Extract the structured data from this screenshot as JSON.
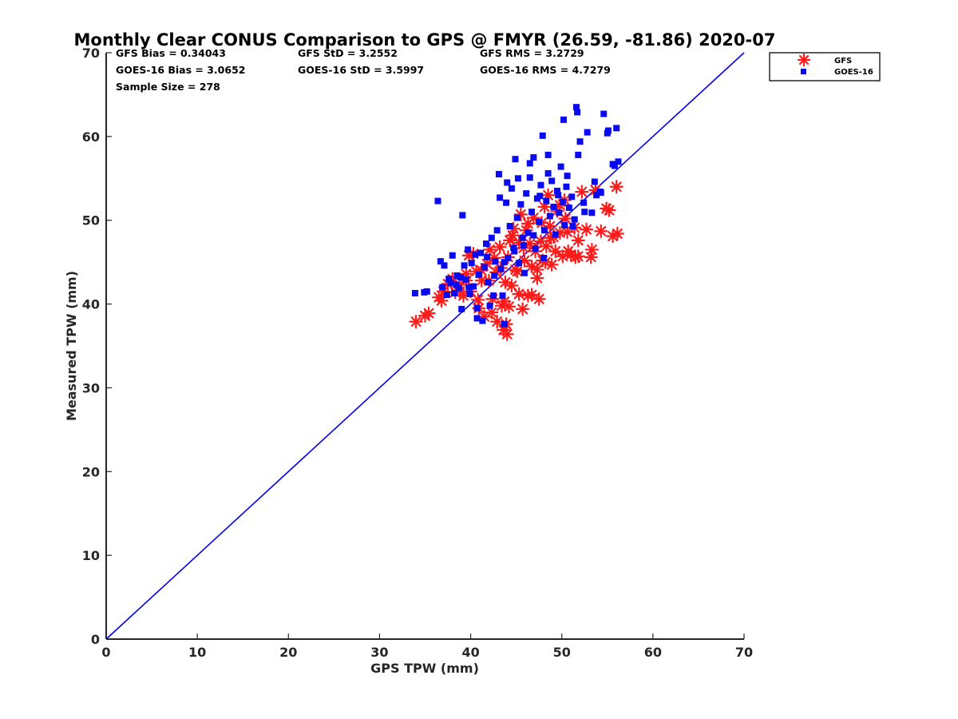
{
  "chart_data": {
    "type": "scatter",
    "title": "Monthly Clear CONUS Comparison to GPS @ FMYR (26.59, -81.86) 2020-07",
    "xlabel": "GPS TPW (mm)",
    "ylabel": "Measured TPW (mm)",
    "xlim": [
      0,
      70
    ],
    "ylim": [
      0,
      70
    ],
    "xticks": [
      "0",
      "10",
      "20",
      "30",
      "40",
      "50",
      "60",
      "70"
    ],
    "yticks": [
      "0",
      "10",
      "20",
      "30",
      "40",
      "50",
      "60",
      "70"
    ],
    "grid": false,
    "legend_position": "outside-top-right",
    "stats": [
      "GFS Bias = 0.34043",
      "GFS StD = 3.2552",
      "GFS RMS = 3.2729",
      "GOES-16 Bias = 3.0652",
      "GOES-16 StD = 3.5997",
      "GOES-16 RMS = 4.7279",
      "Sample Size = 278"
    ],
    "reference_line": {
      "x": [
        0,
        70
      ],
      "y": [
        0,
        70
      ],
      "color": "#0000ee"
    },
    "series": [
      {
        "name": "GFS",
        "marker": "asterisk",
        "color": "#ff1a1a",
        "x": [
          34.0,
          35.0,
          35.4,
          36.5,
          37.0,
          37.5,
          38.0,
          38.3,
          38.8,
          39.2,
          39.5,
          39.8,
          40.0,
          40.3,
          40.6,
          40.9,
          41.2,
          41.5,
          41.8,
          42.1,
          42.4,
          42.6,
          42.9,
          43.2,
          43.4,
          43.6,
          43.8,
          44.0,
          44.1,
          44.3,
          44.5,
          44.7,
          44.9,
          45.1,
          45.3,
          45.5,
          45.7,
          45.9,
          46.1,
          46.3,
          46.5,
          46.7,
          46.9,
          47.1,
          47.3,
          47.5,
          47.7,
          47.9,
          48.1,
          48.3,
          48.5,
          48.7,
          48.9,
          49.1,
          49.3,
          49.5,
          49.8,
          50.1,
          50.4,
          50.7,
          51.0,
          51.4,
          51.8,
          52.2,
          52.7,
          53.2,
          53.7,
          54.3,
          54.9,
          55.6,
          56.1,
          38.8,
          40.8,
          42.3,
          42.8,
          43.3,
          43.9,
          44.2,
          45.3,
          46.3,
          47.3,
          48.8,
          50.3,
          51.8,
          53.3,
          55.2,
          56.0,
          41.2,
          43.7,
          45.8,
          47.8,
          49.8,
          51.5,
          36.8,
          39.5,
          42.0,
          44.6,
          46.7,
          48.2,
          50.6
        ],
        "y": [
          37.9,
          38.6,
          38.9,
          40.8,
          41.5,
          42.4,
          43.0,
          41.4,
          42.3,
          41.0,
          42.8,
          45.8,
          41.5,
          46.0,
          43.9,
          39.5,
          42.8,
          38.5,
          44.8,
          46.5,
          40.6,
          45.5,
          37.9,
          46.8,
          39.8,
          36.9,
          42.6,
          36.4,
          45.6,
          47.6,
          42.2,
          49.0,
          44.1,
          43.9,
          47.3,
          50.7,
          39.4,
          45.2,
          48.8,
          41.0,
          47.2,
          44.5,
          50.3,
          46.3,
          43.1,
          40.6,
          47.5,
          45.2,
          51.6,
          46.9,
          53.0,
          49.3,
          44.7,
          48.0,
          46.3,
          51.1,
          48.5,
          45.7,
          50.2,
          46.3,
          45.9,
          49.1,
          47.6,
          53.4,
          48.9,
          45.6,
          53.6,
          48.7,
          51.4,
          48.1,
          48.4,
          41.5,
          40.5,
          39.0,
          43.8,
          44.3,
          37.6,
          39.7,
          41.2,
          49.6,
          44.1,
          47.9,
          52.4,
          45.7,
          46.5,
          51.2,
          54.0,
          44.0,
          40.3,
          46.7,
          49.7,
          51.8,
          45.6,
          40.4,
          43.6,
          42.8,
          48.2,
          41.1,
          45.0,
          48.6
        ]
      },
      {
        "name": "GOES-16",
        "marker": "square",
        "color": "#0a0af0",
        "x": [
          33.9,
          34.9,
          35.2,
          36.4,
          36.7,
          36.9,
          37.1,
          37.4,
          37.6,
          37.8,
          38.0,
          38.2,
          38.5,
          38.7,
          38.9,
          39.1,
          39.3,
          39.5,
          39.7,
          39.9,
          40.1,
          40.3,
          40.5,
          40.7,
          40.9,
          41.1,
          41.3,
          41.5,
          41.7,
          41.9,
          42.1,
          42.3,
          42.5,
          42.7,
          42.9,
          43.1,
          43.3,
          43.5,
          43.7,
          43.9,
          44.1,
          44.3,
          44.5,
          44.7,
          44.9,
          45.1,
          45.3,
          45.5,
          45.7,
          45.9,
          46.1,
          46.3,
          46.5,
          46.7,
          46.9,
          47.1,
          47.3,
          47.5,
          47.7,
          47.9,
          48.1,
          48.3,
          48.5,
          48.7,
          48.9,
          49.1,
          49.3,
          49.5,
          49.7,
          49.9,
          50.1,
          50.3,
          50.5,
          50.8,
          51.1,
          51.4,
          51.7,
          52.0,
          52.4,
          52.8,
          53.3,
          53.8,
          54.2,
          54.6,
          55.1,
          55.6,
          56.0,
          56.2,
          51.6,
          51.8,
          54.3,
          55.0,
          55.8,
          50.2,
          47.6,
          45.2,
          46.5,
          44.0,
          43.2,
          48.5,
          49.6,
          50.6,
          52.5,
          53.6,
          51.2,
          48.0,
          46.9,
          45.8,
          44.8,
          43.7,
          42.6,
          41.8,
          40.7,
          39.8,
          39.0,
          38.4
        ],
        "y": [
          41.3,
          41.4,
          41.5,
          52.3,
          45.1,
          42.0,
          44.6,
          41.1,
          43.0,
          42.5,
          45.8,
          41.3,
          43.4,
          41.9,
          43.2,
          50.6,
          44.6,
          42.9,
          46.5,
          41.2,
          44.9,
          42.1,
          45.9,
          38.3,
          43.5,
          46.1,
          38.0,
          44.4,
          47.2,
          42.6,
          39.8,
          47.9,
          41.0,
          45.1,
          48.8,
          55.5,
          44.2,
          41.0,
          37.6,
          52.1,
          45.5,
          49.3,
          53.8,
          46.7,
          57.3,
          50.3,
          44.9,
          51.9,
          47.9,
          43.7,
          53.2,
          48.5,
          55.1,
          51.0,
          57.5,
          46.6,
          52.6,
          49.8,
          54.2,
          60.1,
          48.8,
          52.3,
          57.8,
          50.5,
          54.7,
          51.6,
          48.3,
          53.5,
          50.9,
          56.4,
          52.2,
          49.4,
          54.0,
          51.5,
          52.8,
          50.1,
          62.9,
          59.4,
          52.1,
          60.5,
          50.9,
          53.0,
          53.4,
          62.7,
          60.7,
          56.7,
          61.0,
          57.0,
          63.5,
          57.8,
          53.3,
          60.4,
          56.5,
          62.0,
          52.9,
          55.0,
          56.8,
          54.5,
          52.7,
          55.6,
          53.0,
          55.3,
          51.0,
          54.6,
          49.3,
          45.5,
          48.2,
          47.0,
          46.3,
          45.0,
          43.4,
          45.6,
          39.5,
          42.0,
          39.4,
          42.3
        ]
      }
    ]
  }
}
